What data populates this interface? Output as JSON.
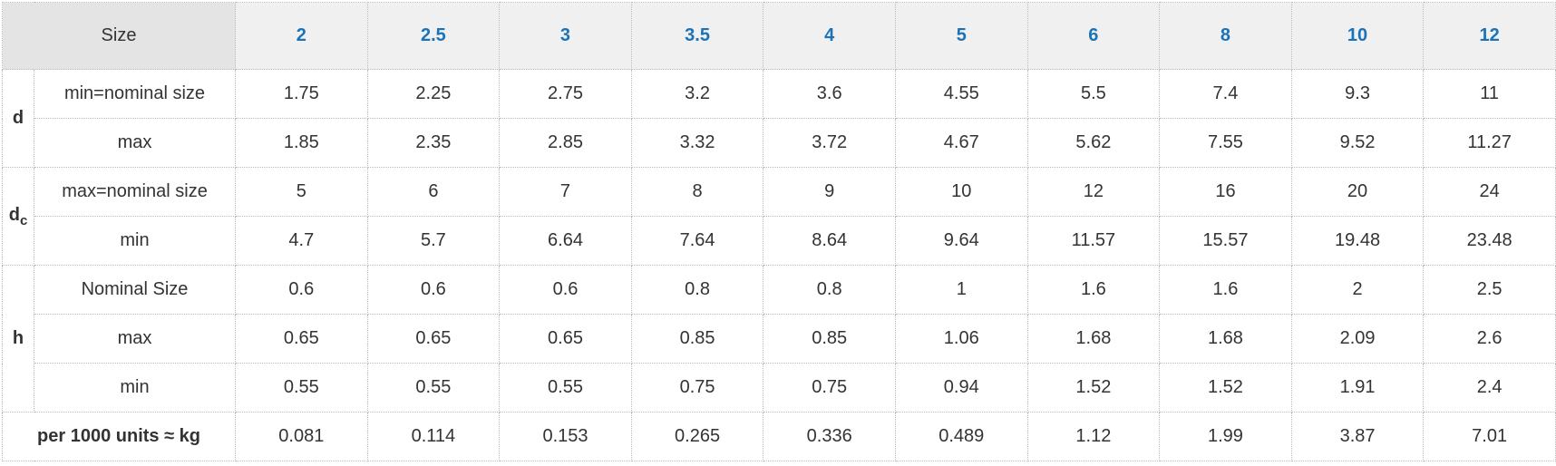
{
  "header": {
    "size_label": "Size",
    "sizes": [
      "2",
      "2.5",
      "3",
      "3.5",
      "4",
      "5",
      "6",
      "8",
      "10",
      "12"
    ]
  },
  "groups": {
    "d": {
      "label": "d",
      "rows": [
        {
          "label": "min=nominal size",
          "values": [
            "1.75",
            "2.25",
            "2.75",
            "3.2",
            "3.6",
            "4.55",
            "5.5",
            "7.4",
            "9.3",
            "11"
          ]
        },
        {
          "label": "max",
          "values": [
            "1.85",
            "2.35",
            "2.85",
            "3.32",
            "3.72",
            "4.67",
            "5.62",
            "7.55",
            "9.52",
            "11.27"
          ]
        }
      ]
    },
    "dc": {
      "label": "d",
      "subscript": "c",
      "rows": [
        {
          "label": "max=nominal size",
          "values": [
            "5",
            "6",
            "7",
            "8",
            "9",
            "10",
            "12",
            "16",
            "20",
            "24"
          ]
        },
        {
          "label": "min",
          "values": [
            "4.7",
            "5.7",
            "6.64",
            "7.64",
            "8.64",
            "9.64",
            "11.57",
            "15.57",
            "19.48",
            "23.48"
          ]
        }
      ]
    },
    "h": {
      "label": "h",
      "rows": [
        {
          "label": "Nominal Size",
          "values": [
            "0.6",
            "0.6",
            "0.6",
            "0.8",
            "0.8",
            "1",
            "1.6",
            "1.6",
            "2",
            "2.5"
          ]
        },
        {
          "label": "max",
          "values": [
            "0.65",
            "0.65",
            "0.65",
            "0.85",
            "0.85",
            "1.06",
            "1.68",
            "1.68",
            "2.09",
            "2.6"
          ]
        },
        {
          "label": "min",
          "values": [
            "0.55",
            "0.55",
            "0.55",
            "0.75",
            "0.75",
            "0.94",
            "1.52",
            "1.52",
            "1.91",
            "2.4"
          ]
        }
      ]
    }
  },
  "weight": {
    "label": "per 1000 units ≈ kg",
    "values": [
      "0.081",
      "0.114",
      "0.153",
      "0.265",
      "0.336",
      "0.489",
      "1.12",
      "1.99",
      "3.87",
      "7.01"
    ]
  }
}
